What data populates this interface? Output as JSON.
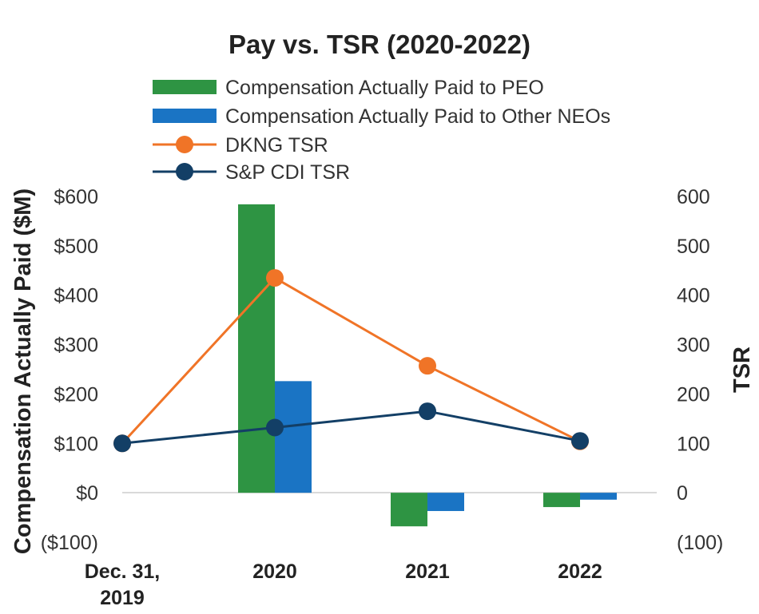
{
  "chart_data": {
    "type": "bar",
    "title": "Pay vs. TSR (2020-2022)",
    "categories": [
      [
        "Dec. 31,",
        "2019"
      ],
      [
        "2020"
      ],
      [
        "2021"
      ],
      [
        "2022"
      ]
    ],
    "ylabel": "Compensation Actually Paid ($M)",
    "y2label": "TSR",
    "ylim": [
      -100,
      600
    ],
    "y2lim": [
      -100,
      600
    ],
    "yticks": [
      "($100)",
      "$0",
      "$100",
      "$200",
      "$300",
      "$400",
      "$500",
      "$600"
    ],
    "y2ticks": [
      "(100)",
      "0",
      "100",
      "200",
      "300",
      "400",
      "500",
      "600"
    ],
    "tick_values": [
      -100,
      0,
      100,
      200,
      300,
      400,
      500,
      600
    ],
    "legend_position": "top-center",
    "series": [
      {
        "name": "Compensation Actually Paid to PEO",
        "kind": "bar",
        "color": "#2e9443",
        "values": [
          null,
          584,
          -68,
          -29
        ]
      },
      {
        "name": "Compensation Actually Paid to Other NEOs",
        "kind": "bar",
        "color": "#1a74c4",
        "values": [
          null,
          226,
          -37,
          -14
        ]
      },
      {
        "name": "DKNG TSR",
        "kind": "line",
        "color": "#f07427",
        "values": [
          100,
          435,
          257,
          104
        ]
      },
      {
        "name": "S&P CDI TSR",
        "kind": "line",
        "color": "#133f66",
        "values": [
          100,
          132,
          165,
          105
        ]
      }
    ]
  }
}
